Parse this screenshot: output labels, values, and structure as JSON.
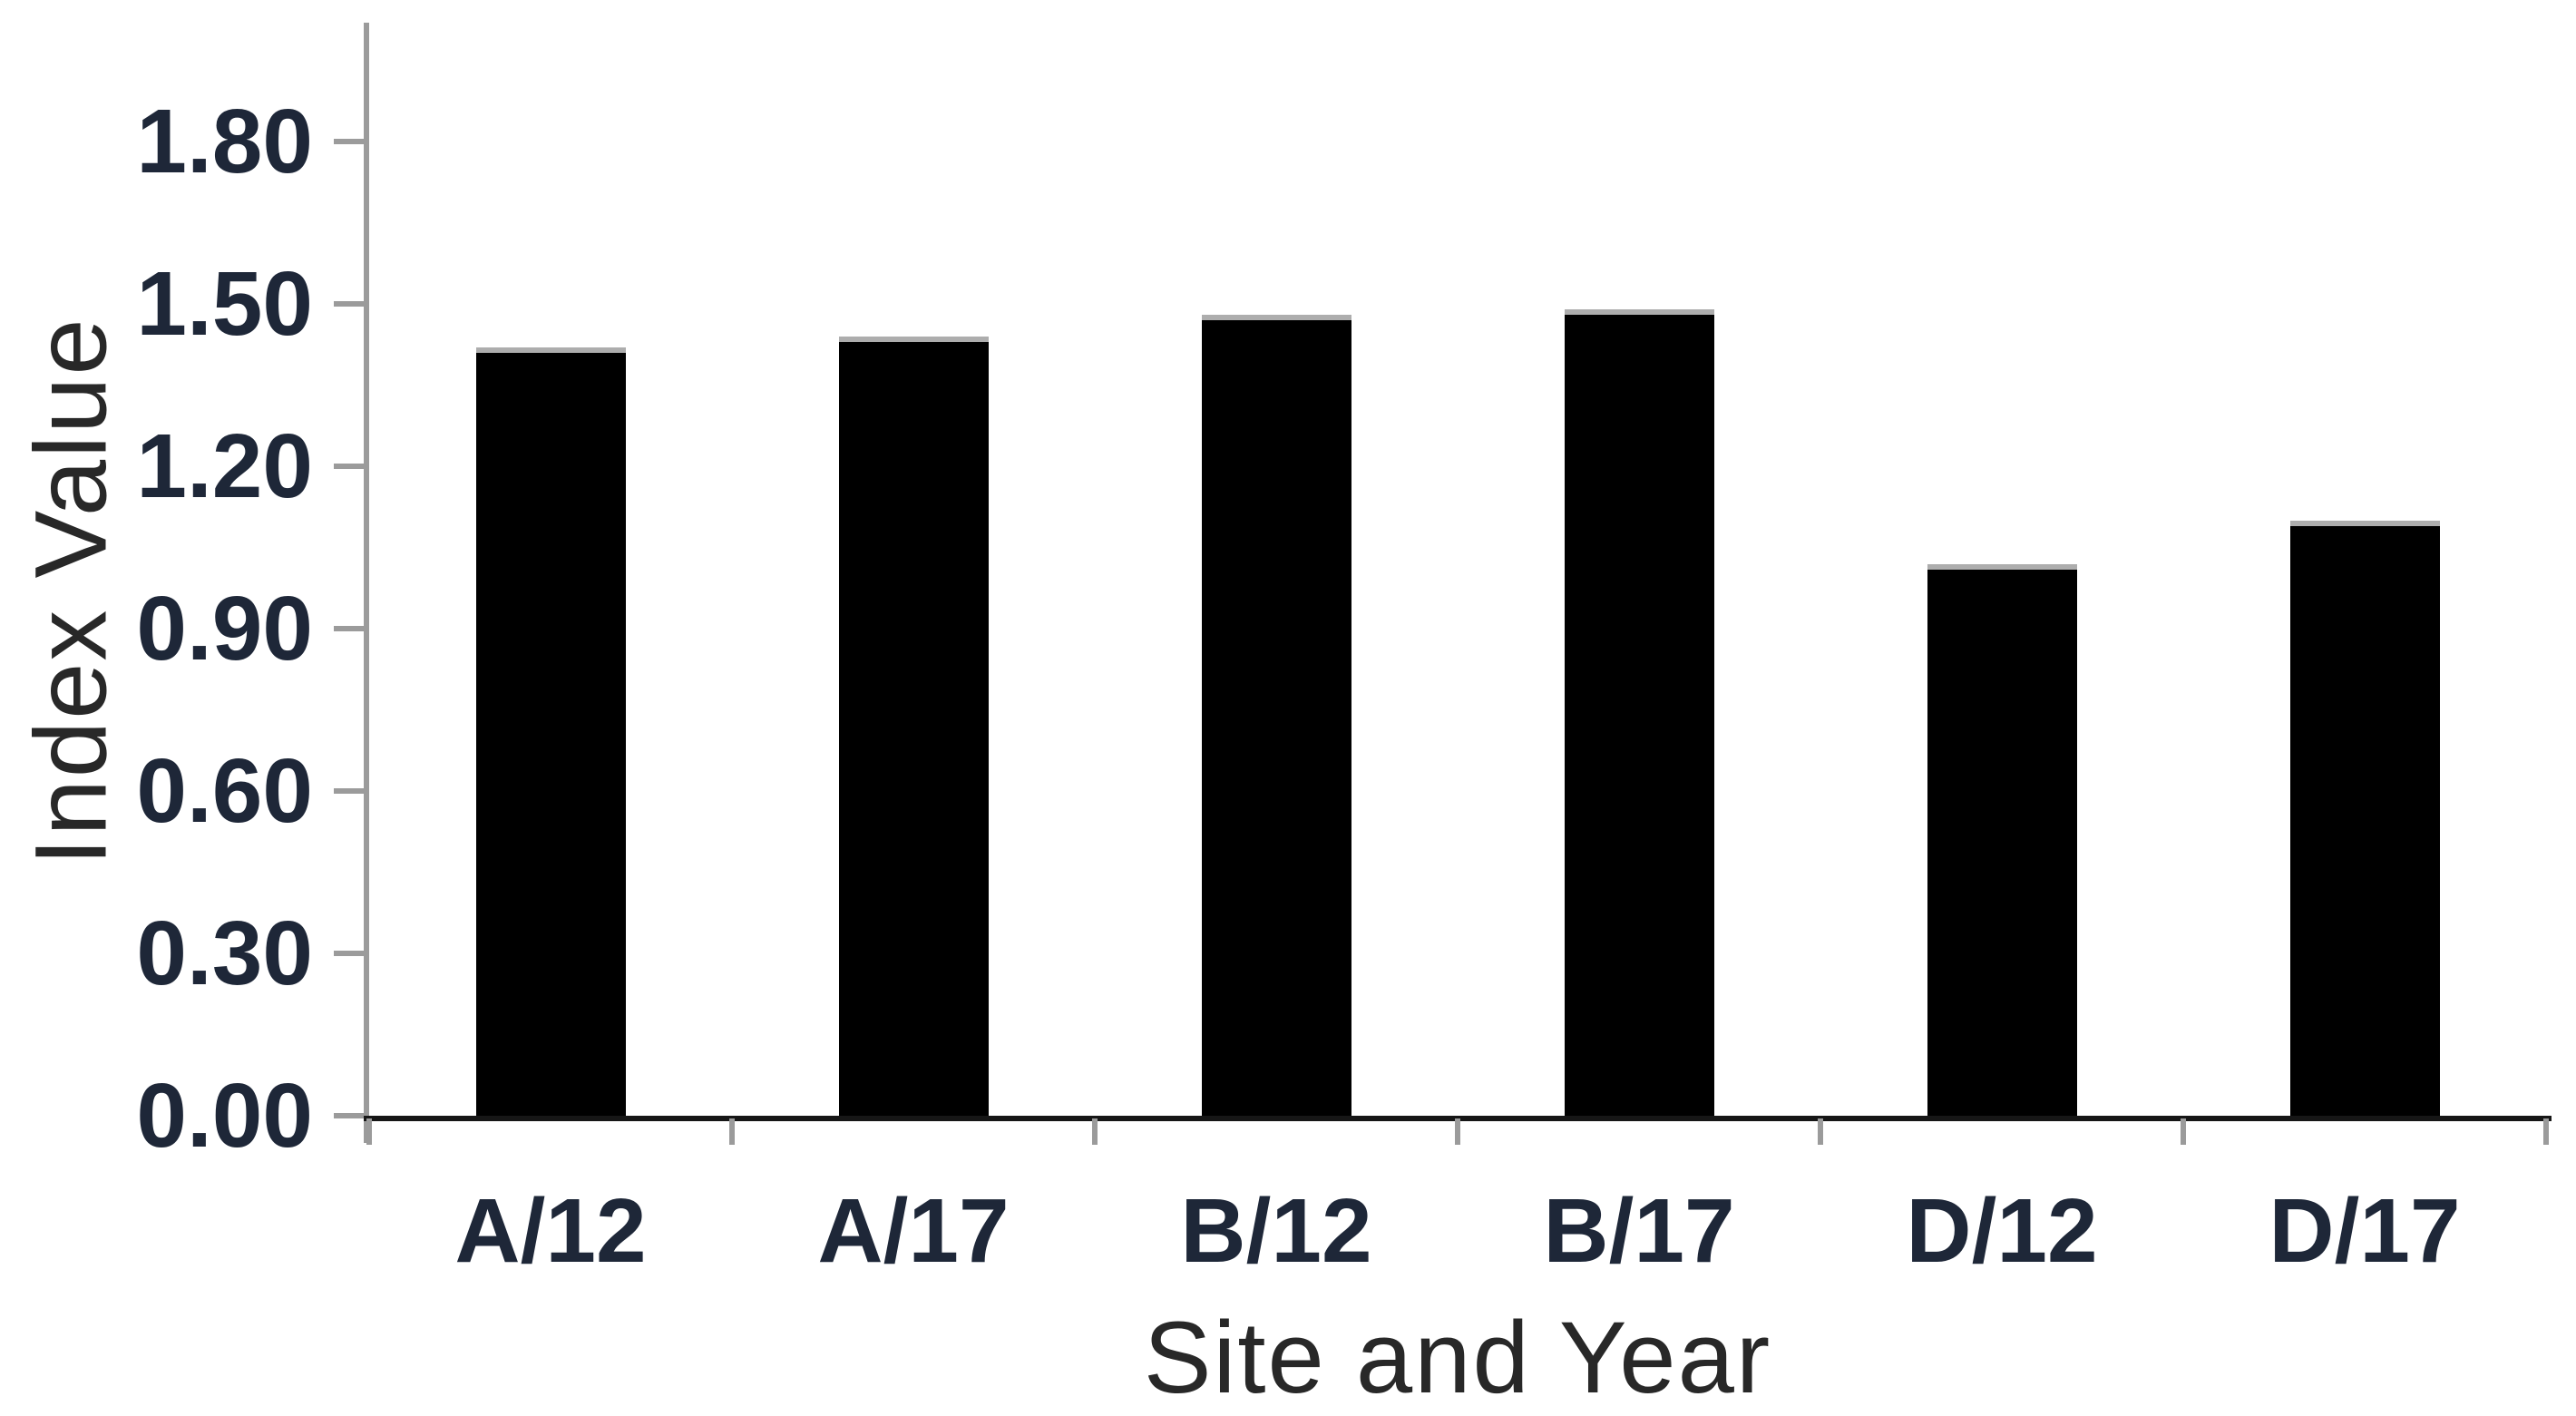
{
  "chart_data": {
    "type": "bar",
    "title": "",
    "categories": [
      "A/12",
      "A/17",
      "B/12",
      "B/17",
      "D/12",
      "D/17"
    ],
    "values": [
      1.42,
      1.44,
      1.48,
      1.49,
      1.02,
      1.1
    ],
    "xlabel": "Site and Year",
    "ylabel": "Index Value",
    "ylim": [
      0,
      2.02
    ],
    "yticks": [
      0.0,
      0.3,
      0.6,
      0.9,
      1.2,
      1.5,
      1.8
    ],
    "ytick_labels": [
      "0.00",
      "0.30",
      "0.60",
      "0.90",
      "1.20",
      "1.50",
      "1.80"
    ],
    "bar_color": "#000000",
    "bar_cap_color": "#adadad",
    "y_axis_color": "#9b9b9b",
    "x_axis_color": "#161616",
    "label_color": "#1e2738",
    "grid": false,
    "legend": "none"
  }
}
